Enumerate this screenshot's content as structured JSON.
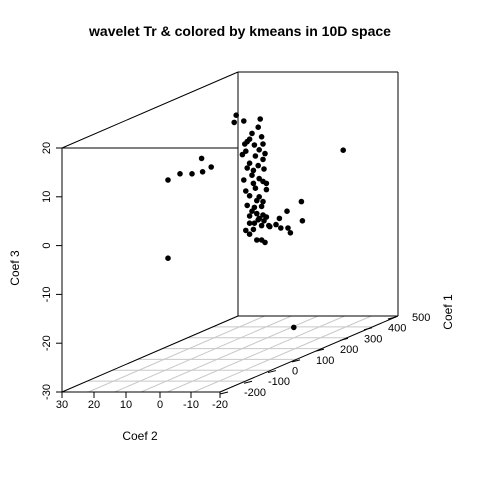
{
  "chart_data": {
    "type": "scatter",
    "title": "wavelet Tr & colored by kmeans in 10D space",
    "xlabel": "Coef 1",
    "ylabel": "Coef 2",
    "zlabel": "Coef 3",
    "xlim": [
      -300,
      500
    ],
    "ylim": [
      -20,
      30
    ],
    "zlim": [
      -30,
      20
    ],
    "xticks": [
      "-200",
      "-100",
      "0",
      "100",
      "200",
      "300",
      "400",
      "500"
    ],
    "yticks": [
      "30",
      "20",
      "10",
      "0",
      "-10",
      "-20"
    ],
    "zticks": [
      "-30",
      "-20",
      "-10",
      "0",
      "10",
      "20"
    ],
    "grid": true,
    "point_color": "#000000",
    "points_screen_frac": [
      [
        0.492,
        0.24
      ],
      [
        0.488,
        0.255
      ],
      [
        0.508,
        0.252
      ],
      [
        0.542,
        0.248
      ],
      [
        0.538,
        0.265
      ],
      [
        0.525,
        0.278
      ],
      [
        0.52,
        0.29
      ],
      [
        0.545,
        0.285
      ],
      [
        0.548,
        0.3
      ],
      [
        0.53,
        0.302
      ],
      [
        0.515,
        0.295
      ],
      [
        0.54,
        0.312
      ],
      [
        0.552,
        0.32
      ],
      [
        0.512,
        0.315
      ],
      [
        0.532,
        0.325
      ],
      [
        0.505,
        0.322
      ],
      [
        0.548,
        0.332
      ],
      [
        0.52,
        0.34
      ],
      [
        0.538,
        0.345
      ],
      [
        0.515,
        0.35
      ],
      [
        0.528,
        0.355
      ],
      [
        0.55,
        0.352
      ],
      [
        0.525,
        0.365
      ],
      [
        0.54,
        0.372
      ],
      [
        0.508,
        0.375
      ],
      [
        0.528,
        0.382
      ],
      [
        0.548,
        0.378
      ],
      [
        0.532,
        0.392
      ],
      [
        0.555,
        0.395
      ],
      [
        0.512,
        0.398
      ],
      [
        0.52,
        0.408
      ],
      [
        0.54,
        0.41
      ],
      [
        0.515,
        0.428
      ],
      [
        0.53,
        0.432
      ],
      [
        0.545,
        0.43
      ],
      [
        0.525,
        0.44
      ],
      [
        0.535,
        0.445
      ],
      [
        0.548,
        0.448
      ],
      [
        0.555,
        0.452
      ],
      [
        0.52,
        0.45
      ],
      [
        0.538,
        0.458
      ],
      [
        0.55,
        0.46
      ],
      [
        0.53,
        0.465
      ],
      [
        0.545,
        0.47
      ],
      [
        0.528,
        0.478
      ],
      [
        0.512,
        0.48
      ],
      [
        0.56,
        0.47
      ],
      [
        0.575,
        0.468
      ],
      [
        0.585,
        0.475
      ],
      [
        0.6,
        0.475
      ],
      [
        0.598,
        0.44
      ],
      [
        0.628,
        0.42
      ],
      [
        0.63,
        0.46
      ],
      [
        0.605,
        0.485
      ],
      [
        0.52,
        0.488
      ],
      [
        0.535,
        0.5
      ],
      [
        0.552,
        0.505
      ],
      [
        0.545,
        0.5
      ],
      [
        0.555,
        0.382
      ],
      [
        0.51,
        0.3
      ],
      [
        0.54,
        0.455
      ],
      [
        0.52,
        0.465
      ],
      [
        0.548,
        0.42
      ],
      [
        0.535,
        0.418
      ],
      [
        0.715,
        0.313
      ],
      [
        0.42,
        0.33
      ],
      [
        0.44,
        0.348
      ],
      [
        0.422,
        0.358
      ],
      [
        0.4,
        0.362
      ],
      [
        0.375,
        0.362
      ],
      [
        0.35,
        0.375
      ],
      [
        0.35,
        0.538
      ],
      [
        0.612,
        0.682
      ],
      [
        0.562,
        0.472
      ],
      [
        0.582,
        0.455
      ]
    ]
  }
}
